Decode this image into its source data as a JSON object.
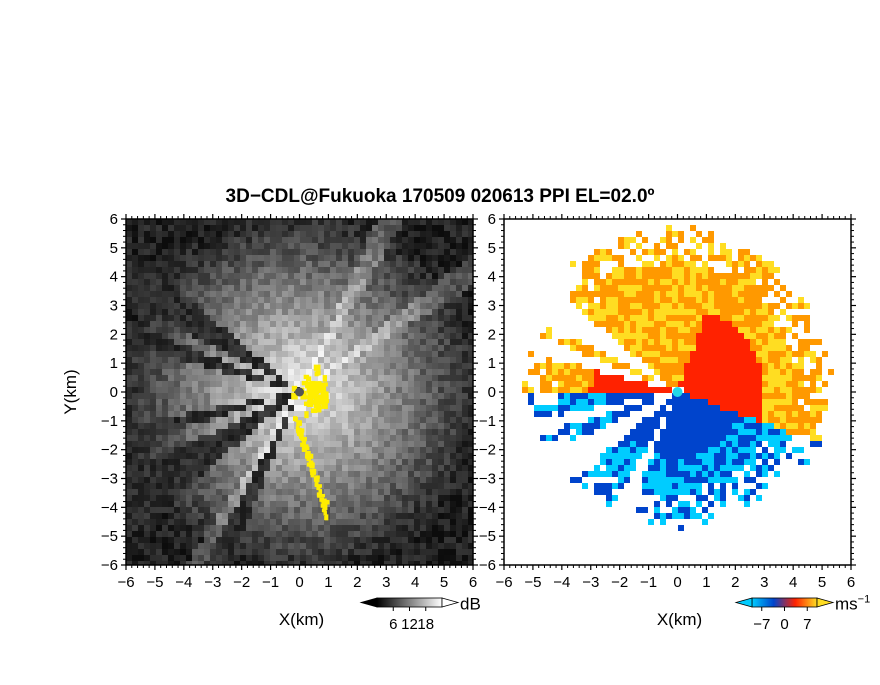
{
  "figure_title": "3D−CDL@Fukuoka 170509 020613 PPI EL=02.0º",
  "colors": {
    "background": "#ffffff",
    "clutter_flag": "#ffee00",
    "radar_site": "#555555",
    "radar_site_velocity": "#22d8e8"
  },
  "chart_data": [
    {
      "type": "heatmap",
      "name": "snr-panel",
      "xlabel": "X(km)",
      "ylabel": "Y(km)",
      "xlim": [
        -6,
        6
      ],
      "ylim": [
        -6,
        6
      ],
      "x_ticks": [
        "−6",
        "−5",
        "−4",
        "−3",
        "−2",
        "−1",
        "0",
        "1",
        "2",
        "3",
        "4",
        "5",
        "6"
      ],
      "y_ticks": [
        "6",
        "5",
        "4",
        "3",
        "2",
        "1",
        "0",
        "−1",
        "−2",
        "−3",
        "−4",
        "−5",
        "−6"
      ],
      "colorbar": {
        "unit": "dB",
        "ticks": [
          6,
          12,
          18
        ],
        "tick_labels": [
          "6",
          "12",
          "18"
        ],
        "range": [
          0,
          24
        ],
        "colors": [
          "#000000",
          "#ffffff"
        ]
      },
      "blocked_sectors_deg": [
        [
          140,
          152
        ],
        [
          158,
          165
        ],
        [
          191,
          197
        ],
        [
          205,
          220
        ],
        [
          241,
          248
        ]
      ],
      "bright_streaks_deg": [
        35,
        62,
        240
      ],
      "clutter_region": "near-site and south-east arc"
    },
    {
      "type": "heatmap",
      "name": "velocity-panel",
      "xlabel": "X(km)",
      "ylabel": "",
      "xlim": [
        -6,
        6
      ],
      "ylim": [
        -6,
        6
      ],
      "x_ticks": [
        "−6",
        "−5",
        "−4",
        "−3",
        "−2",
        "−1",
        "0",
        "1",
        "2",
        "3",
        "4",
        "5",
        "6"
      ],
      "y_ticks": [
        "6",
        "5",
        "4",
        "3",
        "2",
        "1",
        "0",
        "−1",
        "−2",
        "−3",
        "−4",
        "−5",
        "−6"
      ],
      "colorbar": {
        "unit": "ms",
        "unit_exponent": "−1",
        "ticks": [
          -7,
          0,
          7
        ],
        "tick_labels": [
          "−7",
          "0",
          "7"
        ],
        "range": [
          -10,
          10
        ],
        "colors": [
          "#00ccff",
          "#0044cc",
          "#ff2200",
          "#ffdd22"
        ]
      },
      "approach_sector_deg": [
        180,
        340
      ],
      "recede_sector_deg": [
        340,
        540
      ]
    }
  ]
}
